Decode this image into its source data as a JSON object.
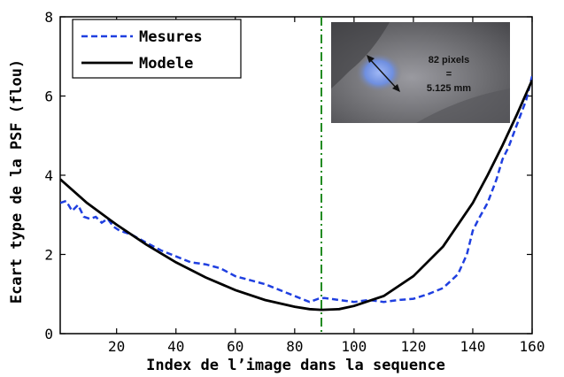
{
  "chart_data": {
    "type": "line",
    "xlabel": "Index de l’image dans la sequence",
    "ylabel": "Ecart type de la PSF (flou)",
    "xlim": [
      1,
      160
    ],
    "ylim": [
      0,
      8
    ],
    "xticks": [
      20,
      40,
      60,
      80,
      100,
      120,
      140,
      160
    ],
    "yticks": [
      0,
      2,
      4,
      6,
      8
    ],
    "grid": false,
    "legend_position": "top-left",
    "vline": {
      "x": 89,
      "color": "#228B22",
      "style": "dash-dot"
    },
    "series": [
      {
        "name": "Mesures",
        "style": "dashed",
        "color": "#1f3fe0",
        "x": [
          1,
          3,
          5,
          7,
          9,
          11,
          13,
          15,
          17,
          19,
          21,
          25,
          30,
          35,
          40,
          45,
          50,
          55,
          60,
          65,
          70,
          75,
          80,
          85,
          88,
          90,
          95,
          100,
          105,
          110,
          115,
          120,
          125,
          130,
          135,
          138,
          140,
          142,
          145,
          148,
          150,
          152,
          155,
          158,
          160
        ],
        "y": [
          3.3,
          3.35,
          3.1,
          3.25,
          2.95,
          2.9,
          2.95,
          2.8,
          2.9,
          2.7,
          2.6,
          2.5,
          2.3,
          2.1,
          1.95,
          1.8,
          1.75,
          1.65,
          1.45,
          1.35,
          1.25,
          1.1,
          0.95,
          0.8,
          0.88,
          0.9,
          0.85,
          0.8,
          0.85,
          0.8,
          0.85,
          0.88,
          1.0,
          1.15,
          1.5,
          2.0,
          2.6,
          2.9,
          3.3,
          3.9,
          4.4,
          4.7,
          5.3,
          5.9,
          6.5
        ]
      },
      {
        "name": "Modele",
        "style": "solid",
        "color": "#000000",
        "x": [
          1,
          10,
          20,
          30,
          40,
          50,
          60,
          70,
          80,
          85,
          89,
          95,
          100,
          110,
          120,
          130,
          140,
          145,
          150,
          155,
          160
        ],
        "y": [
          3.9,
          3.3,
          2.75,
          2.25,
          1.8,
          1.42,
          1.1,
          0.85,
          0.68,
          0.62,
          0.6,
          0.62,
          0.7,
          0.95,
          1.45,
          2.2,
          3.3,
          4.0,
          4.75,
          5.55,
          6.4
        ]
      }
    ],
    "inset": {
      "annotation_lines": [
        "82 pixels",
        "=",
        "5.125 mm"
      ]
    }
  }
}
